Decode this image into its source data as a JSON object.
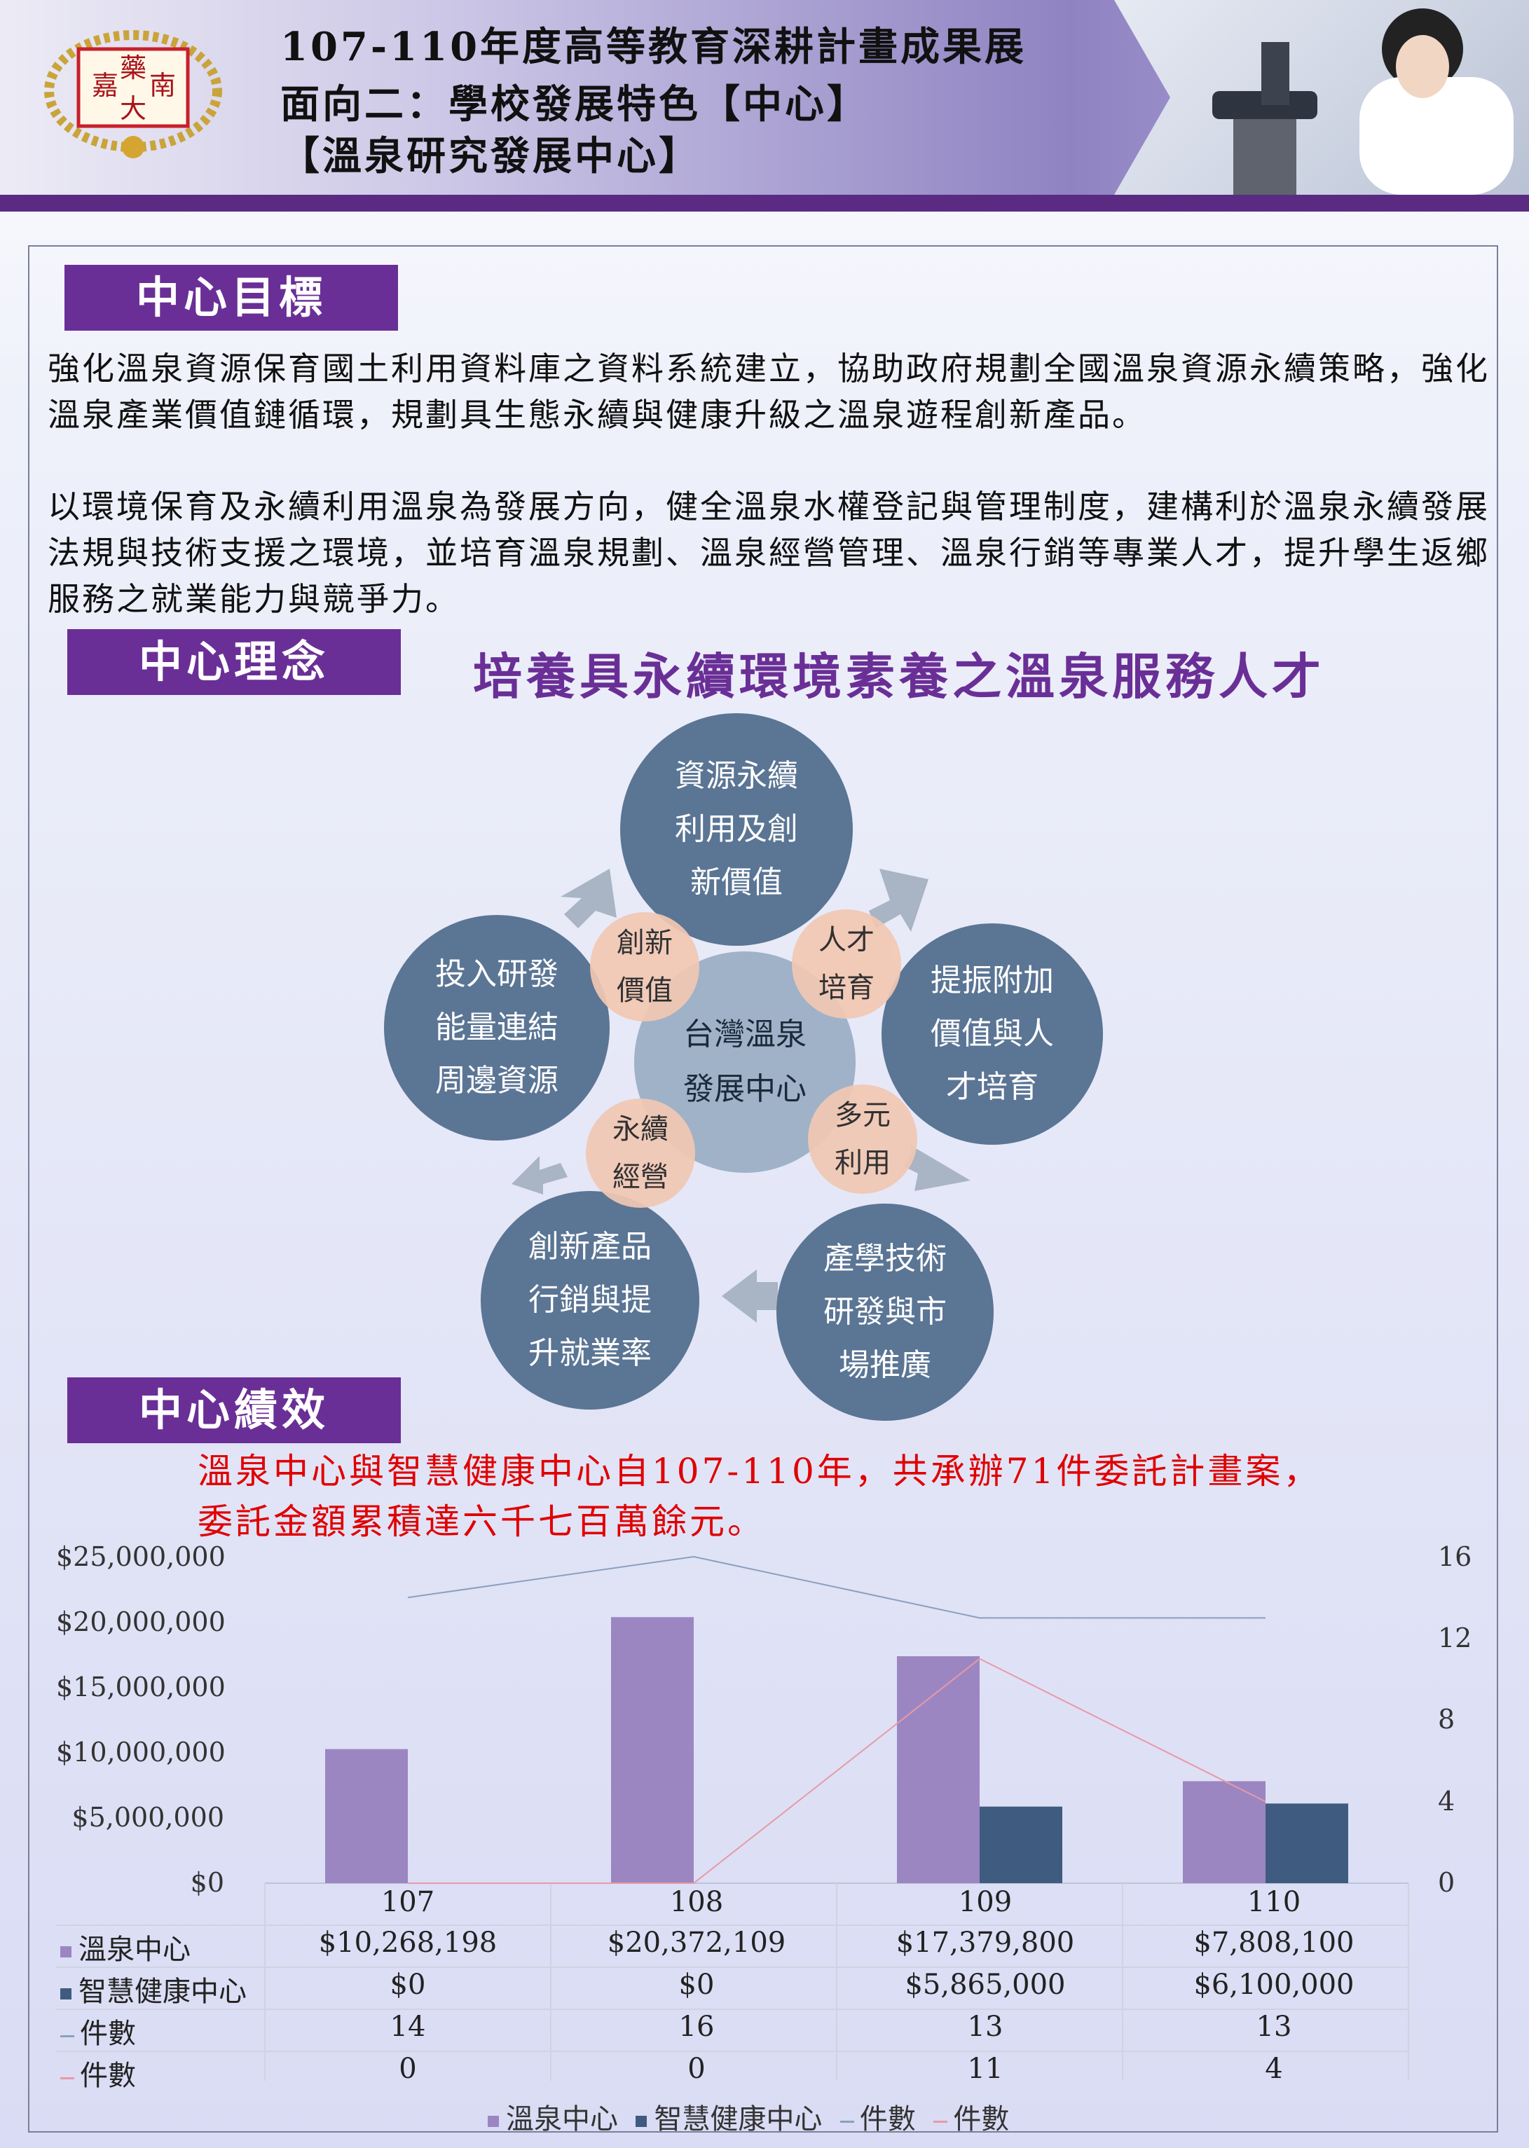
{
  "header": {
    "logo_chars": [
      "嘉",
      "藥",
      "南",
      "大"
    ],
    "title_line1": "107-110年度高等教育深耕計畫成果展",
    "title_line2": "面向二：學校發展特色【中心】",
    "title_line3": "【溫泉研究發展中心】"
  },
  "goal": {
    "label": "中心目標",
    "para1": "強化溫泉資源保育國土利用資料庫之資料系統建立，協助政府規劃全國溫泉資源永續策略，強化溫泉產業價值鏈循環，規劃具生態永續與健康升級之溫泉遊程創新產品。",
    "para2": "以環境保育及永續利用溫泉為發展方向，健全溫泉水權登記與管理制度，建構利於溫泉永續發展法規與技術支援之環境，並培育溫泉規劃、溫泉經營管理、溫泉行銷等專業人才，提升學生返鄉服務之就業能力與競爭力。"
  },
  "concept": {
    "label": "中心理念",
    "slogan": "培養具永續環境素養之溫泉服務人才",
    "center": [
      "台灣溫泉",
      "發展中心"
    ],
    "nodes": {
      "top": [
        "資源永續",
        "利用及創",
        "新價值"
      ],
      "right": [
        "提振附加",
        "價值與人",
        "才培育"
      ],
      "bottom_right": [
        "產學技術",
        "研發與市",
        "場推廣"
      ],
      "bottom_left": [
        "創新產品",
        "行銷與提",
        "升就業率"
      ],
      "left": [
        "投入研發",
        "能量連結",
        "周邊資源"
      ]
    },
    "links": {
      "top_left": [
        "創新",
        "價值"
      ],
      "top_right": [
        "人才",
        "培育"
      ],
      "bottom_right": [
        "多元",
        "利用"
      ],
      "bottom_left": [
        "永續",
        "經營"
      ]
    },
    "colors": {
      "node": "#5b7594",
      "center": "#9fb2c8",
      "link": "#f2c8b3",
      "label_bg": "#6a2f96"
    }
  },
  "performance": {
    "label": "中心績效",
    "summary_line1": "溫泉中心與智慧健康中心自107-110年，共承辦71件委託計畫案，",
    "summary_line2": "委託金額累積達六千七百萬餘元。"
  },
  "chart_data": {
    "type": "bar",
    "categories": [
      "107",
      "108",
      "109",
      "110"
    ],
    "y_ticks": [
      "$25,000,000",
      "$20,000,000",
      "$15,000,000",
      "$10,000,000",
      "$5,000,000",
      "$0"
    ],
    "y2_ticks": [
      "16",
      "12",
      "8",
      "4",
      "0"
    ],
    "ylim": [
      0,
      25000000
    ],
    "y2lim": [
      0,
      16
    ],
    "series": [
      {
        "name": "溫泉中心",
        "kind": "bar",
        "color": "#9b86c2",
        "values": [
          10268198,
          20372109,
          17379800,
          7808100
        ],
        "labels": [
          "$10,268,198",
          "$20,372,109",
          "$17,379,800",
          "$7,808,100"
        ]
      },
      {
        "name": "智慧健康中心",
        "kind": "bar",
        "color": "#3f5c80",
        "values": [
          0,
          0,
          5865000,
          6100000
        ],
        "labels": [
          "$0",
          "$0",
          "$5,865,000",
          "$6,100,000"
        ]
      },
      {
        "name": "件數",
        "kind": "line",
        "axis": "secondary",
        "color": "#8aa0bf",
        "values": [
          14,
          16,
          13,
          13
        ]
      },
      {
        "name": "件數",
        "kind": "line",
        "axis": "secondary",
        "color": "#e79aa6",
        "values": [
          0,
          0,
          11,
          4
        ]
      }
    ],
    "legend": [
      "溫泉中心",
      "智慧健康中心",
      "件數",
      "件數"
    ],
    "legend_position": "bottom"
  }
}
